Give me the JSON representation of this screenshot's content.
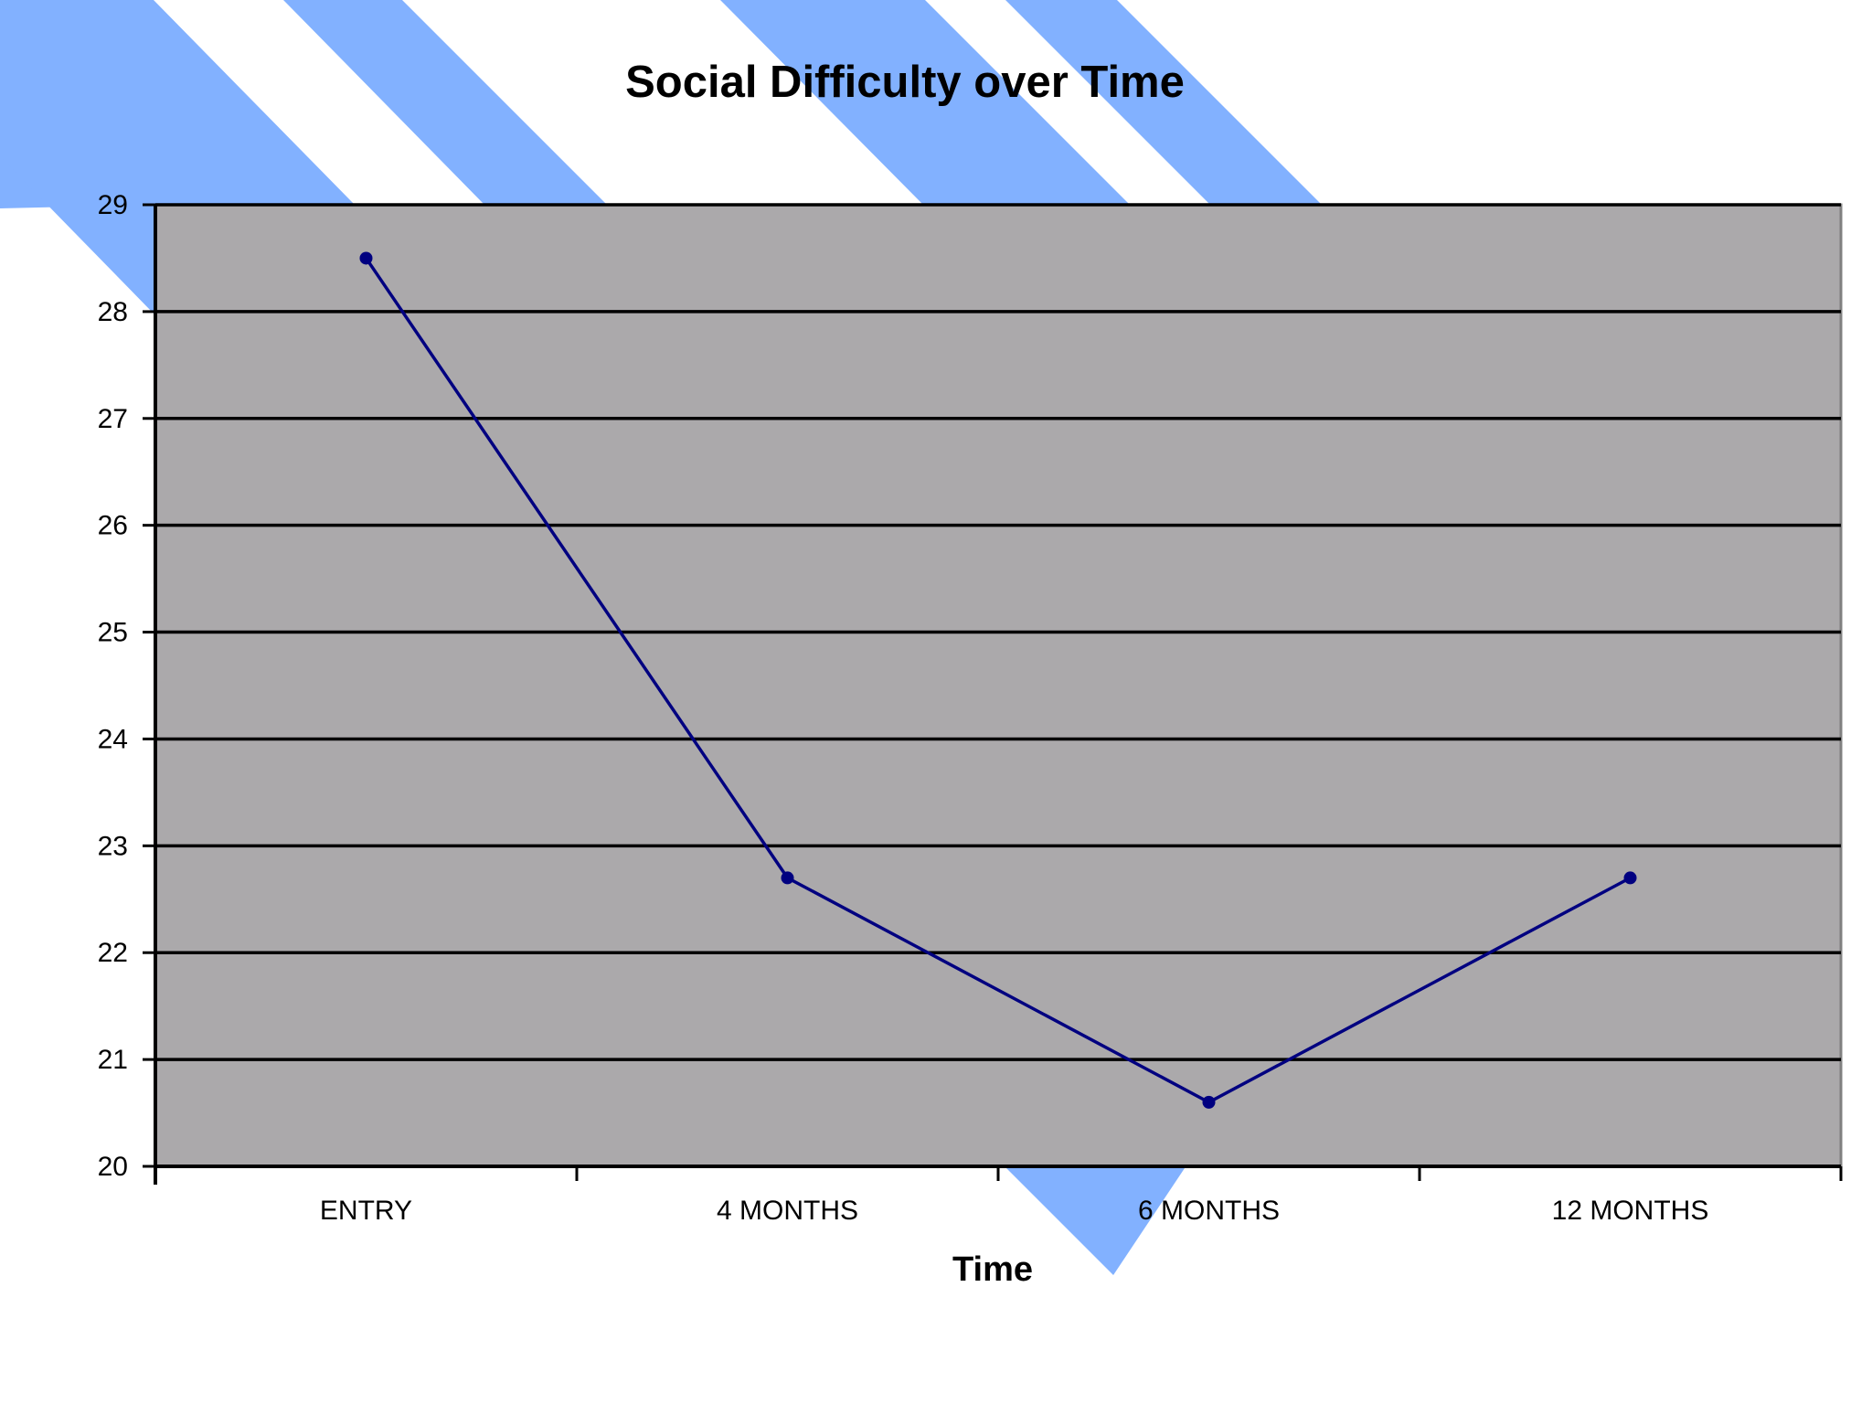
{
  "colors": {
    "page_background": "#ffffff",
    "stripe": "#82b1ff",
    "plot_area": "#aba9ab",
    "plot_border": "#808080",
    "gridline": "#000000",
    "axis": "#000000",
    "series_line": "#000080",
    "marker": "#000080"
  },
  "chart_data": {
    "type": "line",
    "title": "Social Difficulty over Time",
    "xlabel": "Time",
    "ylabel": "",
    "categories": [
      "ENTRY",
      "4 MONTHS",
      "6 MONTHS",
      "12 MONTHS"
    ],
    "series": [
      {
        "values": [
          28.5,
          22.7,
          20.6,
          22.7
        ]
      }
    ],
    "ylim": [
      20,
      29
    ],
    "yticks": [
      "20",
      "21",
      "22",
      "23",
      "24",
      "25",
      "26",
      "27",
      "28",
      "29"
    ],
    "grid": {
      "horizontal": true,
      "vertical": false
    },
    "legend": "none"
  }
}
